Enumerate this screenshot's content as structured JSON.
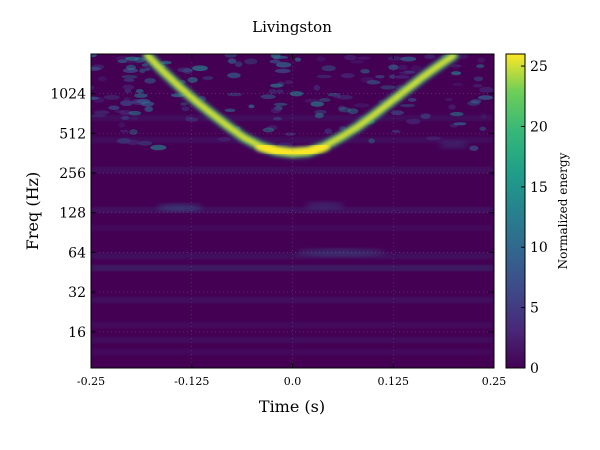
{
  "chart_data": {
    "type": "heatmap",
    "title": "Livingston",
    "xlabel": "Time (s)",
    "ylabel": "Freq (Hz)",
    "x_range": [
      -0.25,
      0.25
    ],
    "x_ticks": [
      {
        "value": -0.25,
        "label": "-0.25"
      },
      {
        "value": -0.125,
        "label": "-0.125"
      },
      {
        "value": 0.0,
        "label": "0.0"
      },
      {
        "value": 0.125,
        "label": "0.125"
      },
      {
        "value": 0.25,
        "label": "0.25"
      }
    ],
    "y_scale": "log2",
    "y_range": [
      8.5,
      2048
    ],
    "y_ticks": [
      {
        "value": 16,
        "label": "16"
      },
      {
        "value": 32,
        "label": "32"
      },
      {
        "value": 64,
        "label": "64"
      },
      {
        "value": 128,
        "label": "128"
      },
      {
        "value": 256,
        "label": "256"
      },
      {
        "value": 512,
        "label": "512"
      },
      {
        "value": 1024,
        "label": "1024"
      }
    ],
    "grid": true,
    "colorbar": {
      "label": "Normalized energy",
      "range": [
        0,
        26
      ],
      "colormap": "viridis",
      "ticks": [
        {
          "value": 0,
          "label": "0"
        },
        {
          "value": 5,
          "label": "5"
        },
        {
          "value": 10,
          "label": "10"
        },
        {
          "value": 15,
          "label": "15"
        },
        {
          "value": 20,
          "label": "20"
        },
        {
          "value": 25,
          "label": "25"
        }
      ]
    },
    "chirp_track": [
      {
        "t": -0.18,
        "f": 2000
      },
      {
        "t": -0.16,
        "f": 1500
      },
      {
        "t": -0.14,
        "f": 1150
      },
      {
        "t": -0.12,
        "f": 900
      },
      {
        "t": -0.1,
        "f": 720
      },
      {
        "t": -0.08,
        "f": 580
      },
      {
        "t": -0.06,
        "f": 475
      },
      {
        "t": -0.04,
        "f": 410
      },
      {
        "t": -0.02,
        "f": 375
      },
      {
        "t": 0.0,
        "f": 362
      },
      {
        "t": 0.02,
        "f": 370
      },
      {
        "t": 0.04,
        "f": 410
      },
      {
        "t": 0.06,
        "f": 480
      },
      {
        "t": 0.08,
        "f": 570
      },
      {
        "t": 0.1,
        "f": 700
      },
      {
        "t": 0.12,
        "f": 870
      },
      {
        "t": 0.14,
        "f": 1080
      },
      {
        "t": 0.16,
        "f": 1350
      },
      {
        "t": 0.18,
        "f": 1650
      },
      {
        "t": 0.2,
        "f": 2000
      }
    ]
  }
}
